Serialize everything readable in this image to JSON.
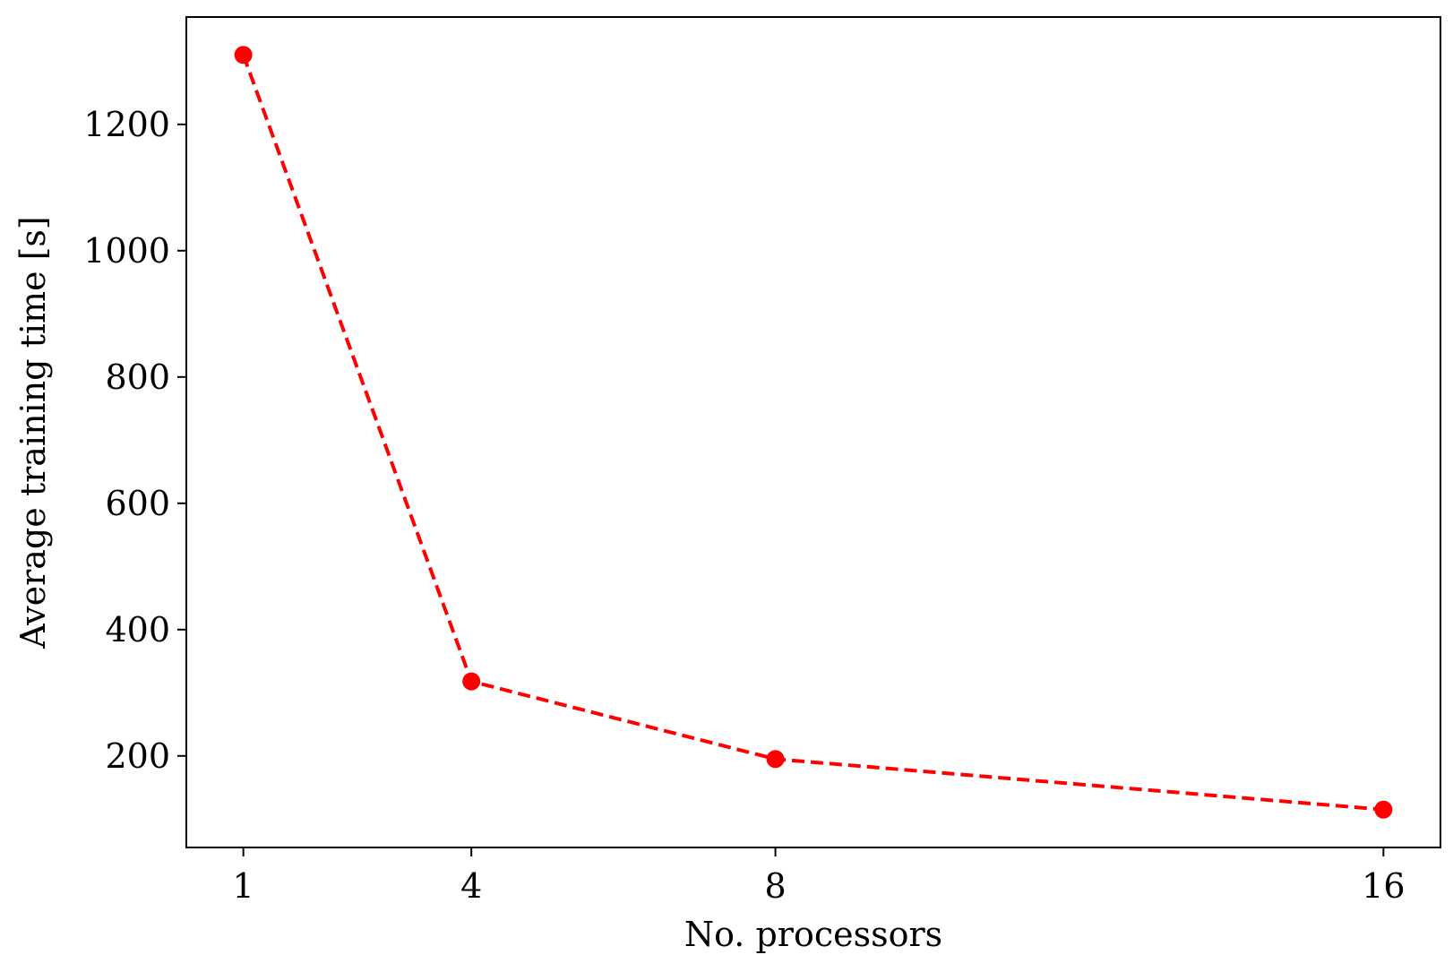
{
  "chart_data": {
    "type": "line",
    "title": "",
    "xlabel": "No. processors",
    "ylabel": "Average training time [s]",
    "x": [
      1,
      4,
      8,
      16
    ],
    "x_tick_labels": [
      "1",
      "4",
      "8",
      "16"
    ],
    "y_ticks": [
      200,
      400,
      600,
      800,
      1000,
      1200
    ],
    "y_tick_labels": [
      "200",
      "400",
      "600",
      "800",
      "1000",
      "1200"
    ],
    "xlim": [
      0.25,
      16.75
    ],
    "ylim": [
      55,
      1370
    ],
    "grid": false,
    "series": [
      {
        "values": [
          1310,
          318,
          195,
          115
        ],
        "color": "#ff0000",
        "line_style": "dashed",
        "marker": "circle"
      }
    ]
  }
}
